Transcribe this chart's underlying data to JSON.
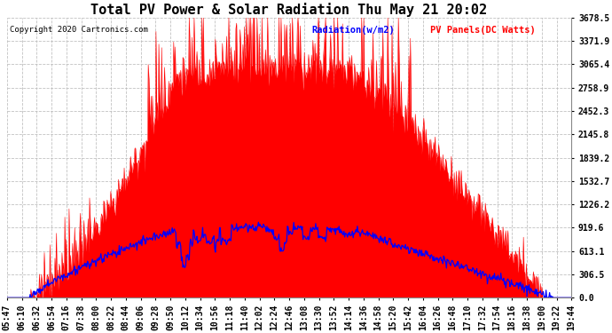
{
  "title": "Total PV Power & Solar Radiation Thu May 21 20:02",
  "copyright": "Copyright 2020 Cartronics.com",
  "legend_radiation": "Radiation(w/m2)",
  "legend_pv": "PV Panels(DC Watts)",
  "yticks": [
    0.0,
    306.5,
    613.1,
    919.6,
    1226.2,
    1532.7,
    1839.2,
    2145.8,
    2452.3,
    2758.9,
    3065.4,
    3371.9,
    3678.5
  ],
  "ymax": 3678.5,
  "background_color": "#ffffff",
  "pv_color": "#ff0000",
  "radiation_color": "#0000ff",
  "grid_color": "#bbbbbb",
  "title_fontsize": 11,
  "tick_fontsize": 7,
  "n_points": 800
}
